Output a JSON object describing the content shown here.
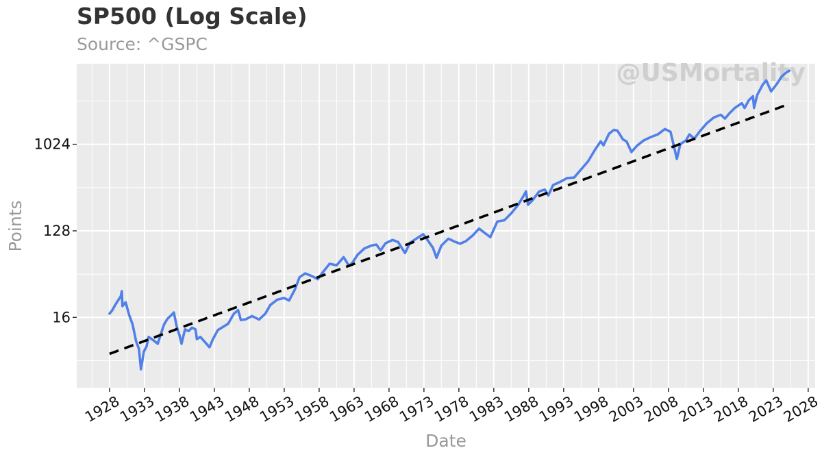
{
  "chart_data": {
    "type": "line",
    "title": "SP500 (Log Scale)",
    "subtitle": "Source: ^GSPC",
    "watermark": "@USMortality",
    "xlabel": "Date",
    "ylabel": "Points",
    "y_scale": "log2",
    "xlim": [
      1923.3,
      2029.0
    ],
    "ylim": [
      2.95,
      7100
    ],
    "x_ticks": [
      1928,
      1933,
      1938,
      1943,
      1948,
      1953,
      1958,
      1963,
      1968,
      1973,
      1978,
      1983,
      1988,
      1993,
      1998,
      2003,
      2008,
      2013,
      2018,
      2023,
      2028
    ],
    "x_tick_labels": [
      "1928",
      "1933",
      "1938",
      "1943",
      "1948",
      "1953",
      "1958",
      "1963",
      "1968",
      "1973",
      "1978",
      "1983",
      "1988",
      "1993",
      "1998",
      "2003",
      "2008",
      "2013",
      "2018",
      "2023",
      "2028"
    ],
    "y_ticks": [
      16,
      128,
      1024
    ],
    "y_tick_labels": [
      "16",
      "128",
      "1024"
    ],
    "grid": true,
    "colors": {
      "price": "#5080e8",
      "trend": "#000000",
      "panel": "#ebebeb",
      "grid": "#ffffff"
    },
    "series": [
      {
        "x": [
          1928.0,
          1928.4,
          1928.8,
          1929.2,
          1929.6,
          1929.75,
          1929.85,
          1930.3,
          1930.8,
          1931.3,
          1931.8,
          1932.2,
          1932.5,
          1932.9,
          1933.3,
          1933.6,
          1934.3,
          1934.9,
          1935.3,
          1935.8,
          1936.3,
          1936.9,
          1937.2,
          1937.6,
          1938.0,
          1938.3,
          1938.8,
          1939.3,
          1939.8,
          1940.3,
          1940.5,
          1941.0,
          1941.8,
          1942.3,
          1942.8,
          1943.5,
          1944.3,
          1945.0,
          1945.8,
          1946.4,
          1946.8,
          1947.5,
          1948.4,
          1949.4,
          1950.3,
          1951.0,
          1952.0,
          1953.0,
          1953.7,
          1954.5,
          1955.2,
          1956.0,
          1957.0,
          1957.8,
          1958.5,
          1959.5,
          1960.5,
          1961.5,
          1962.3,
          1962.8,
          1963.5,
          1964.5,
          1965.5,
          1966.2,
          1966.8,
          1967.5,
          1968.5,
          1969.3,
          1970.3,
          1971.0,
          1972.0,
          1972.9,
          1973.5,
          1974.3,
          1974.8,
          1975.5,
          1976.5,
          1977.5,
          1978.2,
          1979.0,
          1980.0,
          1980.9,
          1981.5,
          1982.5,
          1983.5,
          1984.5,
          1985.5,
          1986.5,
          1987.3,
          1987.6,
          1987.9,
          1988.5,
          1989.5,
          1990.3,
          1990.8,
          1991.5,
          1992.5,
          1993.5,
          1994.5,
          1995.5,
          1996.5,
          1997.5,
          1998.3,
          1998.7,
          1999.5,
          2000.2,
          2000.7,
          2001.5,
          2002.0,
          2002.7,
          2003.5,
          2004.5,
          2005.5,
          2006.5,
          2007.5,
          2008.3,
          2008.9,
          2009.2,
          2009.7,
          2010.5,
          2011.0,
          2011.7,
          2012.5,
          2013.5,
          2014.5,
          2015.5,
          2016.1,
          2016.7,
          2017.5,
          2018.5,
          2018.9,
          2019.5,
          2020.1,
          2020.25,
          2020.7,
          2021.5,
          2022.0,
          2022.7,
          2023.5,
          2024.2,
          2024.8,
          2025.3
        ],
        "y": [
          17.5,
          19.0,
          21.5,
          24.0,
          26.5,
          30.0,
          21.0,
          23.0,
          17.0,
          13.5,
          9.0,
          7.5,
          4.6,
          7.0,
          8.0,
          10.0,
          9.2,
          8.5,
          10.5,
          13.5,
          15.5,
          17.0,
          18.0,
          13.0,
          10.5,
          8.5,
          12.0,
          11.5,
          12.5,
          12.0,
          9.5,
          10.0,
          8.6,
          7.8,
          9.5,
          11.8,
          12.8,
          13.8,
          17.5,
          19.0,
          15.0,
          15.3,
          16.5,
          15.2,
          17.5,
          21.5,
          24.5,
          25.5,
          24.0,
          31.0,
          42.0,
          46.0,
          43.0,
          40.0,
          47.0,
          58.0,
          56.0,
          68.0,
          55.0,
          60.0,
          72.0,
          84.0,
          90.0,
          92.0,
          80.0,
          95.0,
          103.0,
          98.0,
          75.0,
          96.0,
          107.0,
          118.0,
          103.0,
          85.0,
          67.0,
          90.0,
          106.0,
          98.0,
          94.0,
          100.0,
          115.0,
          135.0,
          125.0,
          110.0,
          160.0,
          165.0,
          195.0,
          240.0,
          300.0,
          330.0,
          240.0,
          265.0,
          330.0,
          345.0,
          300.0,
          385.0,
          415.0,
          455.0,
          460.0,
          560.0,
          680.0,
          900.0,
          1100.0,
          1000.0,
          1320.0,
          1450.0,
          1420.0,
          1150.0,
          1100.0,
          850.0,
          990.0,
          1130.0,
          1220.0,
          1300.0,
          1480.0,
          1380.0,
          900.0,
          720.0,
          1030.0,
          1120.0,
          1300.0,
          1170.0,
          1400.0,
          1700.0,
          1950.0,
          2080.0,
          1900.0,
          2150.0,
          2450.0,
          2750.0,
          2450.0,
          2950.0,
          3250.0,
          2450.0,
          3350.0,
          4300.0,
          4750.0,
          3650.0,
          4350.0,
          5200.0,
          5700.0,
          6000.0
        ]
      },
      {
        "x": [
          1928.0,
          2025.3
        ],
        "y": [
          6.66,
          2700.0
        ]
      }
    ]
  }
}
